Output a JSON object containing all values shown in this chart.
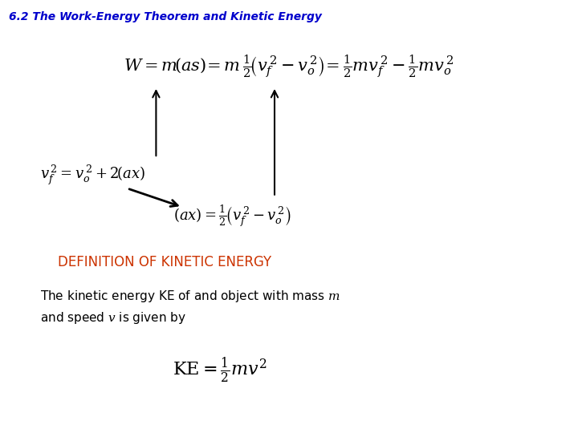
{
  "title": "6.2 The Work-Energy Theorem and Kinetic Energy",
  "title_color": "#0000CC",
  "title_fontsize": 10,
  "background_color": "#ffffff",
  "definition_label": "DEFINITION OF KINETIC ENERGY",
  "definition_color": "#CC3300",
  "eq1_fontsize": 15,
  "eq2_fontsize": 13,
  "eq3_fontsize": 13,
  "eq_ke_fontsize": 16,
  "body_fontsize": 11,
  "def_fontsize": 12
}
